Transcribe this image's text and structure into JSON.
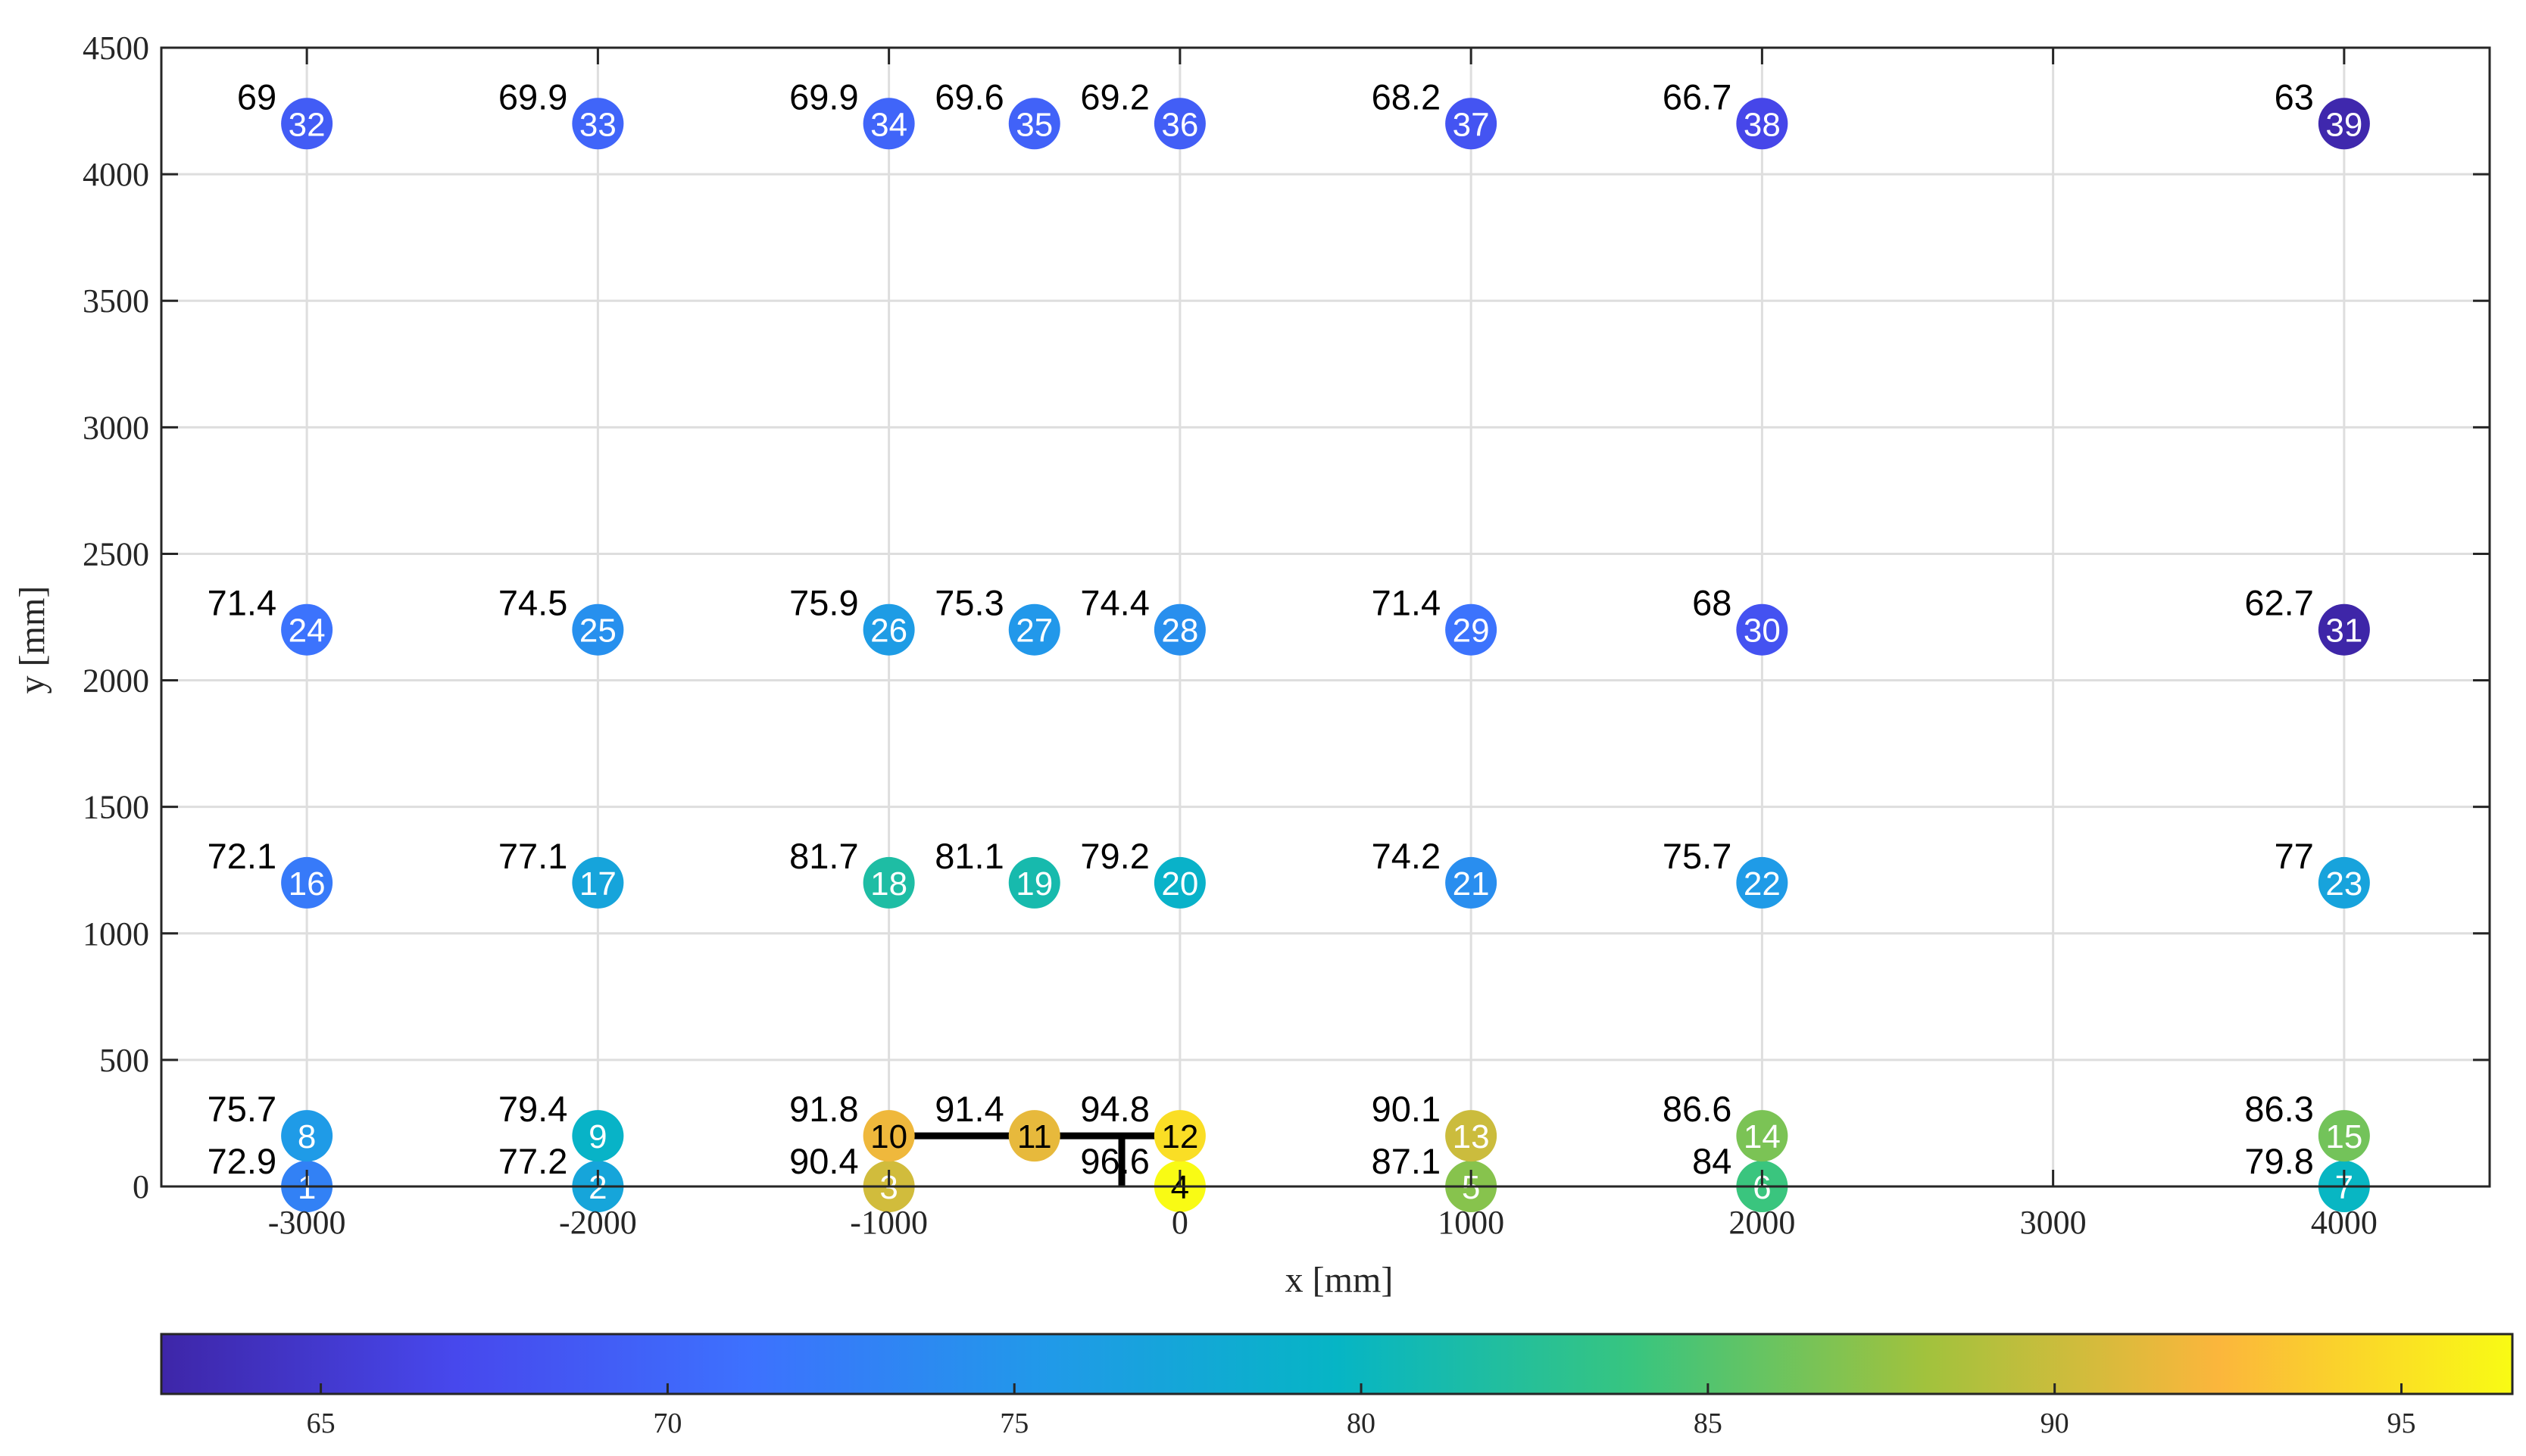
{
  "chart_data": {
    "type": "scatter",
    "xlabel": "x [mm]",
    "ylabel": "y [mm]",
    "xlim": [
      -3500,
      4500
    ],
    "ylim": [
      0,
      4500
    ],
    "xticks": [
      -3000,
      -2000,
      -1000,
      0,
      1000,
      2000,
      3000,
      4000
    ],
    "yticks": [
      0,
      500,
      1000,
      1500,
      2000,
      2500,
      3000,
      3500,
      4000,
      4500
    ],
    "grid": true,
    "colorbar": {
      "location": "bottom",
      "clim": [
        62.7,
        96.6
      ],
      "ticks": [
        65,
        70,
        75,
        80,
        85,
        90,
        95
      ],
      "colormap": "parula"
    },
    "points": [
      {
        "id": 1,
        "x": -3000,
        "y": 0,
        "value": 72.9
      },
      {
        "id": 2,
        "x": -2000,
        "y": 0,
        "value": 77.2
      },
      {
        "id": 3,
        "x": -1000,
        "y": 0,
        "value": 90.4
      },
      {
        "id": 4,
        "x": 0,
        "y": 0,
        "value": 96.6
      },
      {
        "id": 5,
        "x": 1000,
        "y": 0,
        "value": 87.1
      },
      {
        "id": 6,
        "x": 2000,
        "y": 0,
        "value": 84
      },
      {
        "id": 7,
        "x": 4000,
        "y": 0,
        "value": 79.8
      },
      {
        "id": 8,
        "x": -3000,
        "y": 200,
        "value": 75.7
      },
      {
        "id": 9,
        "x": -2000,
        "y": 200,
        "value": 79.4
      },
      {
        "id": 10,
        "x": -1000,
        "y": 200,
        "value": 91.8
      },
      {
        "id": 11,
        "x": -500,
        "y": 200,
        "value": 91.4
      },
      {
        "id": 12,
        "x": 0,
        "y": 200,
        "value": 94.8
      },
      {
        "id": 13,
        "x": 1000,
        "y": 200,
        "value": 90.1
      },
      {
        "id": 14,
        "x": 2000,
        "y": 200,
        "value": 86.6
      },
      {
        "id": 15,
        "x": 4000,
        "y": 200,
        "value": 86.3
      },
      {
        "id": 16,
        "x": -3000,
        "y": 1200,
        "value": 72.1
      },
      {
        "id": 17,
        "x": -2000,
        "y": 1200,
        "value": 77.1
      },
      {
        "id": 18,
        "x": -1000,
        "y": 1200,
        "value": 81.7
      },
      {
        "id": 19,
        "x": -500,
        "y": 1200,
        "value": 81.1
      },
      {
        "id": 20,
        "x": 0,
        "y": 1200,
        "value": 79.2
      },
      {
        "id": 21,
        "x": 1000,
        "y": 1200,
        "value": 74.2
      },
      {
        "id": 22,
        "x": 2000,
        "y": 1200,
        "value": 75.7
      },
      {
        "id": 23,
        "x": 4000,
        "y": 1200,
        "value": 77
      },
      {
        "id": 24,
        "x": -3000,
        "y": 2200,
        "value": 71.4
      },
      {
        "id": 25,
        "x": -2000,
        "y": 2200,
        "value": 74.5
      },
      {
        "id": 26,
        "x": -1000,
        "y": 2200,
        "value": 75.9
      },
      {
        "id": 27,
        "x": -500,
        "y": 2200,
        "value": 75.3
      },
      {
        "id": 28,
        "x": 0,
        "y": 2200,
        "value": 74.4
      },
      {
        "id": 29,
        "x": 1000,
        "y": 2200,
        "value": 71.4
      },
      {
        "id": 30,
        "x": 2000,
        "y": 2200,
        "value": 68
      },
      {
        "id": 31,
        "x": 4000,
        "y": 2200,
        "value": 62.7
      },
      {
        "id": 32,
        "x": -3000,
        "y": 4200,
        "value": 69
      },
      {
        "id": 33,
        "x": -2000,
        "y": 4200,
        "value": 69.9
      },
      {
        "id": 34,
        "x": -1000,
        "y": 4200,
        "value": 69.9
      },
      {
        "id": 35,
        "x": -500,
        "y": 4200,
        "value": 69.6
      },
      {
        "id": 36,
        "x": 0,
        "y": 4200,
        "value": 69.2
      },
      {
        "id": 37,
        "x": 1000,
        "y": 4200,
        "value": 68.2
      },
      {
        "id": 38,
        "x": 2000,
        "y": 4200,
        "value": 66.7
      },
      {
        "id": 39,
        "x": 4000,
        "y": 4200,
        "value": 63
      }
    ],
    "structure_lines": [
      {
        "x": [
          -1000,
          0
        ],
        "y": [
          200,
          200
        ]
      },
      {
        "x": [
          -200,
          -200
        ],
        "y": [
          200,
          0
        ]
      }
    ]
  }
}
